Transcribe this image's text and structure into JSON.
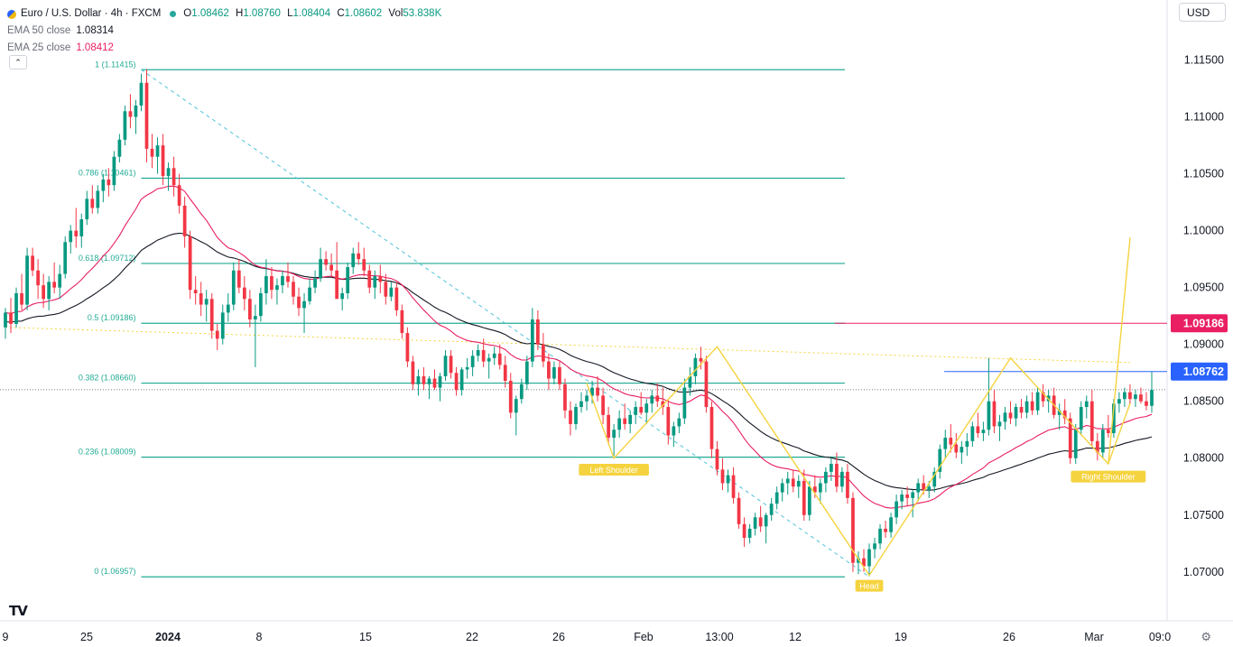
{
  "header": {
    "symbol_title": "Euro / U.S. Dollar · 4h · FXCM",
    "ohlc": [
      {
        "k": "O",
        "v": "1.08462"
      },
      {
        "k": "H",
        "v": "1.08760"
      },
      {
        "k": "L",
        "v": "1.08404"
      },
      {
        "k": "C",
        "v": "1.08602"
      },
      {
        "k": "Vol",
        "v": "53.838K"
      }
    ],
    "ema50": {
      "name": "EMA 50 close",
      "value": "1.08314",
      "color": "#131722"
    },
    "ema25": {
      "name": "EMA 25 close",
      "value": "1.08412",
      "color": "#e91e63"
    },
    "collapse_icon": "chevron-up-icon"
  },
  "toolbar": {
    "currency": "USD"
  },
  "chart_data": {
    "type": "candlestick",
    "colors": {
      "up": "#089981",
      "down": "#f23645",
      "fib": "#22ab94",
      "ema25": "#e91e63",
      "ema50": "#131722",
      "pattern": "#f5d33f",
      "resistance": "#e91e63",
      "level": "#2962ff"
    },
    "y_ticks": [
      "1.11500",
      "1.11000",
      "1.10500",
      "1.10000",
      "1.09500",
      "1.09000",
      "1.08500",
      "1.08000",
      "1.07500",
      "1.07000"
    ],
    "y_tick_values": [
      1.115,
      1.11,
      1.105,
      1.1,
      1.095,
      1.09,
      1.085,
      1.08,
      1.075,
      1.07
    ],
    "ylim": [
      1.0657,
      1.1179
    ],
    "x_ticks": [
      "9",
      "25",
      "2024",
      "8",
      "15",
      "22",
      "26",
      "Feb",
      "13:00",
      "12",
      "19",
      "26",
      "Mar",
      "09:0"
    ],
    "x_tick_bold": [
      "2024"
    ],
    "fib_levels": [
      {
        "label": "1 (1.11415)",
        "value": 1.11415
      },
      {
        "label": "0.786 (1.10461)",
        "value": 1.10461
      },
      {
        "label": "0.618 (1.09712)",
        "value": 1.09712
      },
      {
        "label": "0.5 (1.09186)",
        "value": 1.09186
      },
      {
        "label": "0.382 (1.08660)",
        "value": 1.0866
      },
      {
        "label": "0.236 (1.08009)",
        "value": 1.08009
      },
      {
        "label": "0 (1.06957)",
        "value": 1.06957
      }
    ],
    "price_tags": [
      {
        "label": "1.09186",
        "value": 1.09186,
        "color": "#e91e63"
      },
      {
        "label": "1.08762",
        "value": 1.08762,
        "color": "#2962ff"
      }
    ],
    "last_price": 1.08602,
    "pattern_labels": [
      {
        "text": "Left Shoulder",
        "bar": 112,
        "value": 1.0799
      },
      {
        "text": "Head",
        "bar": 159,
        "value": 1.0697
      },
      {
        "text": "Right Shoulder",
        "bar": 203,
        "value": 1.0793
      }
    ],
    "neckline_anchor": {
      "from_bar": 0,
      "from_value": 1.0915,
      "to_bar": 207,
      "to_value": 1.0884
    },
    "projection_target": 1.0994,
    "ohlc_bars": [
      [
        1.0915,
        1.0932,
        1.0905,
        1.0928
      ],
      [
        1.0928,
        1.0941,
        1.091,
        1.0918
      ],
      [
        1.0918,
        1.095,
        1.0915,
        1.0945
      ],
      [
        1.0945,
        1.0962,
        1.093,
        1.0935
      ],
      [
        1.0935,
        1.0985,
        1.093,
        1.0978
      ],
      [
        1.0978,
        1.0985,
        1.096,
        1.0965
      ],
      [
        1.0965,
        1.0975,
        1.094,
        1.0952
      ],
      [
        1.0952,
        1.0962,
        1.0932,
        1.094
      ],
      [
        1.094,
        1.096,
        1.093,
        1.0955
      ],
      [
        1.0955,
        1.0972,
        1.0945,
        1.095
      ],
      [
        1.095,
        1.097,
        1.094,
        1.0962
      ],
      [
        1.0962,
        1.0995,
        1.0958,
        1.099
      ],
      [
        1.099,
        1.1005,
        1.098,
        1.1
      ],
      [
        1.1,
        1.102,
        1.0985,
        1.0995
      ],
      [
        1.0995,
        1.1015,
        1.0985,
        1.101
      ],
      [
        1.101,
        1.1035,
        1.1005,
        1.1028
      ],
      [
        1.1028,
        1.104,
        1.1015,
        1.102
      ],
      [
        1.102,
        1.104,
        1.1015,
        1.1035
      ],
      [
        1.1035,
        1.105,
        1.1025,
        1.1045
      ],
      [
        1.1045,
        1.1055,
        1.103,
        1.104
      ],
      [
        1.104,
        1.107,
        1.1035,
        1.1065
      ],
      [
        1.1065,
        1.1085,
        1.106,
        1.108
      ],
      [
        1.108,
        1.111,
        1.1075,
        1.1105
      ],
      [
        1.1105,
        1.112,
        1.109,
        1.11
      ],
      [
        1.11,
        1.1115,
        1.1085,
        1.111
      ],
      [
        1.111,
        1.1138,
        1.1105,
        1.113
      ],
      [
        1.113,
        1.1142,
        1.106,
        1.1072
      ],
      [
        1.1072,
        1.1085,
        1.1055,
        1.1065
      ],
      [
        1.1065,
        1.1082,
        1.105,
        1.1075
      ],
      [
        1.1075,
        1.1085,
        1.104,
        1.1048
      ],
      [
        1.1048,
        1.106,
        1.1035,
        1.1055
      ],
      [
        1.1055,
        1.1065,
        1.103,
        1.104
      ],
      [
        1.104,
        1.105,
        1.1015,
        1.1022
      ],
      [
        1.1022,
        1.103,
        1.0985,
        1.0995
      ],
      [
        1.0995,
        1.1,
        1.094,
        1.0948
      ],
      [
        1.0948,
        1.096,
        1.0935,
        1.0945
      ],
      [
        1.0945,
        1.0955,
        1.0925,
        1.0935
      ],
      [
        1.0935,
        1.0948,
        1.092,
        1.094
      ],
      [
        1.094,
        1.0945,
        1.0905,
        1.0912
      ],
      [
        1.0912,
        1.0918,
        1.0895,
        1.0905
      ],
      [
        1.0905,
        1.0935,
        1.09,
        1.0928
      ],
      [
        1.0928,
        1.0945,
        1.092,
        1.0935
      ],
      [
        1.0935,
        1.0972,
        1.093,
        1.0965
      ],
      [
        1.0965,
        1.0975,
        1.0945,
        1.095
      ],
      [
        1.095,
        1.096,
        1.093,
        1.094
      ],
      [
        1.094,
        1.0948,
        1.0915,
        1.0922
      ],
      [
        1.0922,
        1.0935,
        1.088,
        1.0925
      ],
      [
        1.0925,
        1.095,
        1.092,
        1.0945
      ],
      [
        1.0945,
        1.0975,
        1.0935,
        1.096
      ],
      [
        1.096,
        1.0968,
        1.094,
        1.0948
      ],
      [
        1.0948,
        1.0958,
        1.0935,
        1.0952
      ],
      [
        1.0952,
        1.0965,
        1.0945,
        1.096
      ],
      [
        1.096,
        1.0972,
        1.095,
        1.0955
      ],
      [
        1.0955,
        1.096,
        1.0935,
        1.0942
      ],
      [
        1.0942,
        1.095,
        1.0925,
        1.0932
      ],
      [
        1.0932,
        1.0945,
        1.091,
        1.0938
      ],
      [
        1.0938,
        1.0958,
        1.0935,
        1.095
      ],
      [
        1.095,
        1.0965,
        1.0945,
        1.0958
      ],
      [
        1.0958,
        1.0985,
        1.0955,
        1.0975
      ],
      [
        1.0975,
        1.0982,
        1.0965,
        1.097
      ],
      [
        1.097,
        1.098,
        1.096,
        1.0965
      ],
      [
        1.0965,
        1.099,
        1.0955,
        1.094
      ],
      [
        1.094,
        1.095,
        1.093,
        1.0945
      ],
      [
        1.0945,
        1.0972,
        1.094,
        1.0968
      ],
      [
        1.0968,
        1.0985,
        1.0962,
        1.098
      ],
      [
        1.098,
        1.099,
        1.097,
        1.0975
      ],
      [
        1.0975,
        1.0985,
        1.096,
        1.0965
      ],
      [
        1.0965,
        1.097,
        1.0945,
        1.095
      ],
      [
        1.095,
        1.0965,
        1.094,
        1.096
      ],
      [
        1.096,
        1.097,
        1.0945,
        1.0955
      ],
      [
        1.0955,
        1.0962,
        1.0935,
        1.0942
      ],
      [
        1.0942,
        1.0955,
        1.0938,
        1.095
      ],
      [
        1.095,
        1.0955,
        1.0925,
        1.093
      ],
      [
        1.093,
        1.0935,
        1.0905,
        1.091
      ],
      [
        1.091,
        1.0915,
        1.088,
        1.0885
      ],
      [
        1.0885,
        1.089,
        1.086,
        1.0865
      ],
      [
        1.0865,
        1.0878,
        1.0855,
        1.0872
      ],
      [
        1.0872,
        1.088,
        1.086,
        1.0865
      ],
      [
        1.0865,
        1.0872,
        1.0852,
        1.087
      ],
      [
        1.087,
        1.0878,
        1.086,
        1.0862
      ],
      [
        1.0862,
        1.0875,
        1.085,
        1.0872
      ],
      [
        1.0872,
        1.0895,
        1.0868,
        1.089
      ],
      [
        1.089,
        1.0895,
        1.087,
        1.0875
      ],
      [
        1.0875,
        1.088,
        1.0855,
        1.086
      ],
      [
        1.086,
        1.088,
        1.0855,
        1.0878
      ],
      [
        1.0878,
        1.0888,
        1.087,
        1.088
      ],
      [
        1.088,
        1.0895,
        1.0872,
        1.089
      ],
      [
        1.089,
        1.09,
        1.0885,
        1.0895
      ],
      [
        1.0895,
        1.0905,
        1.088,
        1.0885
      ],
      [
        1.0885,
        1.0892,
        1.087,
        1.0888
      ],
      [
        1.0888,
        1.0898,
        1.0882,
        1.0892
      ],
      [
        1.0892,
        1.09,
        1.0878,
        1.0882
      ],
      [
        1.0882,
        1.089,
        1.0862,
        1.0868
      ],
      [
        1.0868,
        1.0875,
        1.0835,
        1.084
      ],
      [
        1.084,
        1.0855,
        1.082,
        1.0852
      ],
      [
        1.0852,
        1.087,
        1.0848,
        1.0865
      ],
      [
        1.0865,
        1.089,
        1.086,
        1.0885
      ],
      [
        1.0885,
        1.0932,
        1.088,
        1.0922
      ],
      [
        1.0922,
        1.093,
        1.0895,
        1.09
      ],
      [
        1.09,
        1.091,
        1.088,
        1.0885
      ],
      [
        1.0885,
        1.0892,
        1.086,
        1.087
      ],
      [
        1.087,
        1.0885,
        1.0865,
        1.088
      ],
      [
        1.088,
        1.0885,
        1.086,
        1.0865
      ],
      [
        1.0865,
        1.087,
        1.0835,
        1.0842
      ],
      [
        1.0842,
        1.085,
        1.082,
        1.083
      ],
      [
        1.083,
        1.0848,
        1.0825,
        1.0845
      ],
      [
        1.0845,
        1.0858,
        1.084,
        1.085
      ],
      [
        1.085,
        1.086,
        1.0842,
        1.0855
      ],
      [
        1.0855,
        1.0868,
        1.0848,
        1.0862
      ],
      [
        1.0862,
        1.0872,
        1.085,
        1.0855
      ],
      [
        1.0855,
        1.0862,
        1.083,
        1.0838
      ],
      [
        1.0838,
        1.0845,
        1.0812,
        1.0818
      ],
      [
        1.0818,
        1.083,
        1.0802,
        1.0825
      ],
      [
        1.0825,
        1.0842,
        1.0818,
        1.0835
      ],
      [
        1.0835,
        1.0848,
        1.0825,
        1.083
      ],
      [
        1.083,
        1.0842,
        1.0822,
        1.0838
      ],
      [
        1.0838,
        1.085,
        1.083,
        1.0845
      ],
      [
        1.0845,
        1.0858,
        1.0838,
        1.084
      ],
      [
        1.084,
        1.0852,
        1.083,
        1.0848
      ],
      [
        1.0848,
        1.086,
        1.084,
        1.0855
      ],
      [
        1.0855,
        1.0866,
        1.0845,
        1.085
      ],
      [
        1.085,
        1.0862,
        1.0838,
        1.0845
      ],
      [
        1.0845,
        1.0852,
        1.0812,
        1.082
      ],
      [
        1.082,
        1.0832,
        1.081,
        1.0828
      ],
      [
        1.0828,
        1.084,
        1.0822,
        1.0835
      ],
      [
        1.0835,
        1.087,
        1.083,
        1.0862
      ],
      [
        1.0862,
        1.088,
        1.0855,
        1.0872
      ],
      [
        1.0872,
        1.0892,
        1.0865,
        1.0888
      ],
      [
        1.0888,
        1.0898,
        1.0878,
        1.0885
      ],
      [
        1.0885,
        1.089,
        1.084,
        1.0845
      ],
      [
        1.0845,
        1.085,
        1.08,
        1.0808
      ],
      [
        1.0808,
        1.0815,
        1.0785,
        1.079
      ],
      [
        1.079,
        1.08,
        1.0772,
        1.0778
      ],
      [
        1.0778,
        1.079,
        1.077,
        1.0785
      ],
      [
        1.0785,
        1.0792,
        1.076,
        1.0765
      ],
      [
        1.0765,
        1.077,
        1.0738,
        1.0742
      ],
      [
        1.0742,
        1.0748,
        1.0722,
        1.073
      ],
      [
        1.073,
        1.0742,
        1.0725,
        1.0738
      ],
      [
        1.0738,
        1.0752,
        1.0732,
        1.0748
      ],
      [
        1.0748,
        1.0758,
        1.0735,
        1.074
      ],
      [
        1.074,
        1.0752,
        1.0725,
        1.075
      ],
      [
        1.075,
        1.0765,
        1.0745,
        1.076
      ],
      [
        1.076,
        1.0775,
        1.0755,
        1.077
      ],
      [
        1.077,
        1.0782,
        1.0762,
        1.0778
      ],
      [
        1.0778,
        1.0788,
        1.0768,
        1.0782
      ],
      [
        1.0782,
        1.079,
        1.077,
        1.0775
      ],
      [
        1.0775,
        1.0785,
        1.0765,
        1.078
      ],
      [
        1.078,
        1.079,
        1.0745,
        1.075
      ],
      [
        1.075,
        1.078,
        1.0745,
        1.0775
      ],
      [
        1.0775,
        1.0785,
        1.0765,
        1.077
      ],
      [
        1.077,
        1.0782,
        1.076,
        1.0778
      ],
      [
        1.0778,
        1.0792,
        1.077,
        1.0788
      ],
      [
        1.0788,
        1.08,
        1.078,
        1.0795
      ],
      [
        1.0795,
        1.0805,
        1.077,
        1.0775
      ],
      [
        1.0775,
        1.0792,
        1.077,
        1.0788
      ],
      [
        1.0788,
        1.0795,
        1.076,
        1.0765
      ],
      [
        1.0765,
        1.077,
        1.07,
        1.0708
      ],
      [
        1.0708,
        1.0718,
        1.0698,
        1.0712
      ],
      [
        1.0712,
        1.072,
        1.07,
        1.0705
      ],
      [
        1.0705,
        1.0725,
        1.0696,
        1.072
      ],
      [
        1.072,
        1.073,
        1.0712,
        1.0725
      ],
      [
        1.0725,
        1.0742,
        1.072,
        1.0738
      ],
      [
        1.0738,
        1.0745,
        1.073,
        1.0735
      ],
      [
        1.0735,
        1.0752,
        1.073,
        1.0748
      ],
      [
        1.0748,
        1.0768,
        1.0742,
        1.0762
      ],
      [
        1.0762,
        1.0772,
        1.0755,
        1.0768
      ],
      [
        1.0768,
        1.0775,
        1.0758,
        1.0765
      ],
      [
        1.0765,
        1.0772,
        1.0748,
        1.077
      ],
      [
        1.077,
        1.0782,
        1.0762,
        1.0778
      ],
      [
        1.0778,
        1.0785,
        1.0768,
        1.0772
      ],
      [
        1.0772,
        1.078,
        1.0765,
        1.0775
      ],
      [
        1.0775,
        1.0792,
        1.077,
        1.0788
      ],
      [
        1.0788,
        1.0812,
        1.0782,
        1.0808
      ],
      [
        1.0808,
        1.0825,
        1.08,
        1.0818
      ],
      [
        1.0818,
        1.083,
        1.0805,
        1.0812
      ],
      [
        1.0812,
        1.0822,
        1.08,
        1.0805
      ],
      [
        1.0805,
        1.0815,
        1.0795,
        1.081
      ],
      [
        1.081,
        1.0822,
        1.0802,
        1.0815
      ],
      [
        1.0815,
        1.0832,
        1.081,
        1.0828
      ],
      [
        1.0828,
        1.084,
        1.0818,
        1.0822
      ],
      [
        1.0822,
        1.0832,
        1.0815,
        1.0825
      ],
      [
        1.0825,
        1.0888,
        1.082,
        1.085
      ],
      [
        1.085,
        1.086,
        1.0822,
        1.0828
      ],
      [
        1.0828,
        1.0838,
        1.0815,
        1.0832
      ],
      [
        1.0832,
        1.0845,
        1.0825,
        1.084
      ],
      [
        1.084,
        1.085,
        1.083,
        1.0835
      ],
      [
        1.0835,
        1.0848,
        1.0828,
        1.0845
      ],
      [
        1.0845,
        1.0852,
        1.0835,
        1.084
      ],
      [
        1.084,
        1.0855,
        1.0835,
        1.085
      ],
      [
        1.085,
        1.0858,
        1.0838,
        1.0842
      ],
      [
        1.0842,
        1.0862,
        1.0838,
        1.0858
      ],
      [
        1.0858,
        1.0865,
        1.0845,
        1.085
      ],
      [
        1.085,
        1.086,
        1.084,
        1.0855
      ],
      [
        1.0855,
        1.0862,
        1.0835,
        1.0838
      ],
      [
        1.0838,
        1.0848,
        1.0825,
        1.0842
      ],
      [
        1.0842,
        1.0852,
        1.083,
        1.0835
      ],
      [
        1.0835,
        1.084,
        1.0795,
        1.08
      ],
      [
        1.08,
        1.083,
        1.0795,
        1.0825
      ],
      [
        1.0825,
        1.085,
        1.082,
        1.0845
      ],
      [
        1.0845,
        1.0855,
        1.0835,
        1.085
      ],
      [
        1.085,
        1.086,
        1.081,
        1.0815
      ],
      [
        1.0815,
        1.0822,
        1.0798,
        1.0805
      ],
      [
        1.0805,
        1.083,
        1.08,
        1.0825
      ],
      [
        1.0825,
        1.0838,
        1.0818,
        1.0822
      ],
      [
        1.0822,
        1.0852,
        1.0818,
        1.0848
      ],
      [
        1.0848,
        1.0858,
        1.084,
        1.0852
      ],
      [
        1.0852,
        1.0862,
        1.0845,
        1.0858
      ],
      [
        1.0858,
        1.0865,
        1.0848,
        1.0852
      ],
      [
        1.0852,
        1.086,
        1.0845,
        1.0856
      ],
      [
        1.0856,
        1.0862,
        1.0848,
        1.085
      ],
      [
        1.085,
        1.0858,
        1.0842,
        1.0846
      ],
      [
        1.0846,
        1.0876,
        1.084,
        1.086
      ]
    ]
  }
}
